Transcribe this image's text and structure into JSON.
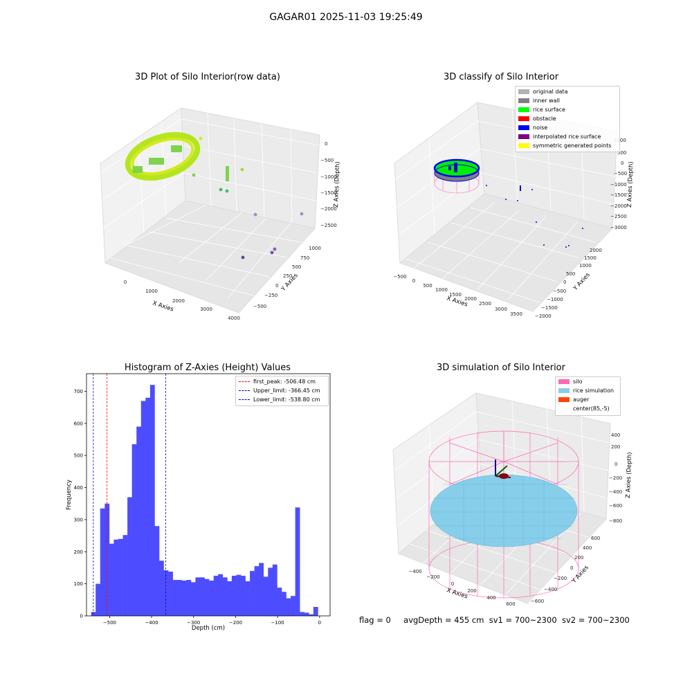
{
  "suptitle": "GAGAR01 2025-11-03 19:25:49",
  "footer": {
    "flag": "flag = 0",
    "avg_depth": "avgDepth = 455 cm",
    "sv1": "sv1 = 700~2300",
    "sv2": "sv2 = 700~2300"
  },
  "colors": {
    "histogram_bar": "#4d4dff",
    "first_peak_line": "#ff0000",
    "limit_lines": "#0000cc",
    "pane_gray": "#f2f2f2",
    "silo": "#ff69b4",
    "rice_simulation": "#87ceeb",
    "auger": "#ff4500"
  },
  "chart_data": [
    {
      "type": "scatter3d",
      "title": "3D Plot of Silo Interior(row data)",
      "xlabel": "X Axies",
      "ylabel": "Y Axies",
      "zlabel": "Z Axies (Depth)",
      "x_ticks": [
        "0",
        "1000",
        "2000",
        "3000",
        "4000"
      ],
      "y_ticks": [
        "−500",
        "−250",
        "0",
        "250",
        "500",
        "750",
        "1000"
      ],
      "z_ticks": [
        "0",
        "−500",
        "−1000",
        "−1500",
        "−2000",
        "−2500"
      ],
      "colormap": "viridis"
    },
    {
      "type": "scatter3d",
      "title": "3D classify of Silo Interior",
      "xlabel": "X Axies",
      "ylabel": "Y Axies",
      "zlabel": "Z Axies (Depth)",
      "x_ticks": [
        "−500",
        "0",
        "500",
        "1000",
        "1500",
        "2000",
        "2500",
        "3000",
        "3500"
      ],
      "y_ticks": [
        "−2000",
        "−1500",
        "−1000",
        "−500",
        "0",
        "500",
        "1000",
        "1500",
        "2000"
      ],
      "z_ticks": [
        "1000",
        "500",
        "0",
        "−500",
        "−1000",
        "−1500",
        "−2000",
        "−2500",
        "−3000"
      ],
      "legend_position": "top-right",
      "legend": [
        {
          "label": "original data",
          "color": "#b3b3b3"
        },
        {
          "label": "inner wall",
          "color": "#808080"
        },
        {
          "label": "rice surface",
          "color": "#00ff00"
        },
        {
          "label": "obstacle",
          "color": "#ff0000"
        },
        {
          "label": "noise",
          "color": "#0000ff"
        },
        {
          "label": "interpolated rice surface",
          "color": "#800080"
        },
        {
          "label": "symmetric generated points",
          "color": "#ffff00"
        }
      ]
    },
    {
      "type": "bar",
      "title": "Histogram of Z-Axies (Height) Values",
      "xlabel": "Depth (cm)",
      "ylabel": "Frequency",
      "xlim": [
        -555,
        25
      ],
      "ylim": [
        0,
        755
      ],
      "x_ticks": [
        -500,
        -400,
        -300,
        -200,
        -100,
        0
      ],
      "x_tick_labels": [
        "−500",
        "−400",
        "−300",
        "−200",
        "−100",
        "0"
      ],
      "y_ticks": [
        0,
        100,
        200,
        300,
        400,
        500,
        600,
        700
      ],
      "bin_start": -544,
      "bin_width": 10.8,
      "values": [
        12,
        100,
        335,
        350,
        225,
        238,
        240,
        252,
        370,
        535,
        590,
        670,
        680,
        720,
        280,
        172,
        142,
        138,
        112,
        112,
        110,
        112,
        105,
        120,
        120,
        115,
        110,
        125,
        130,
        120,
        108,
        125,
        128,
        125,
        108,
        140,
        155,
        165,
        122,
        150,
        160,
        88,
        75,
        55,
        62,
        338,
        12,
        10,
        5,
        28
      ],
      "vlines": [
        {
          "x": -506.48,
          "label": "first_peak: -506.48 cm",
          "color": "#ff0000"
        },
        {
          "x": -366.45,
          "label": "Upper_limit: -366.45 cm",
          "color": "#0000cc"
        },
        {
          "x": -538.8,
          "label": "Lower_limit: -538.80 cm",
          "color": "#0000cc"
        }
      ],
      "legend_position": "top-right"
    },
    {
      "type": "surface3d",
      "title": "3D simulation of Silo Interior",
      "xlabel": "X Axies",
      "ylabel": "Y Axies",
      "zlabel": "Z Axies (Depth)",
      "x_ticks": [
        "−400",
        "−200",
        "0",
        "200",
        "400",
        "600"
      ],
      "y_ticks": [
        "−600",
        "−400",
        "−200",
        "0",
        "200",
        "400",
        "600"
      ],
      "z_ticks": [
        "400",
        "200",
        "0",
        "−200",
        "−400",
        "−600",
        "−800"
      ],
      "legend_position": "top-right",
      "legend": [
        {
          "label": "silo",
          "color": "#ff69b4"
        },
        {
          "label": "rice simulation",
          "color": "#87ceeb"
        },
        {
          "label": "auger",
          "color": "#ff4500"
        },
        {
          "label": "center(85,-5)",
          "color": "#ffffff"
        }
      ]
    }
  ]
}
